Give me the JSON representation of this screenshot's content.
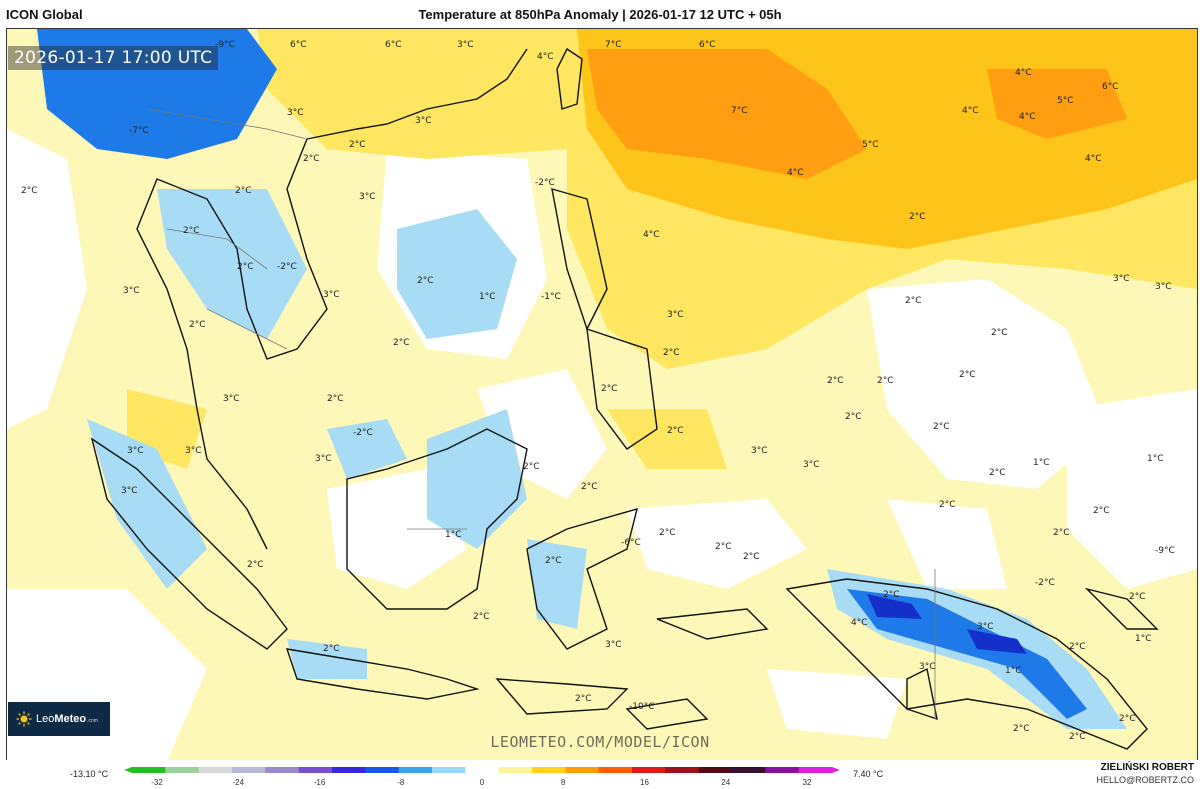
{
  "header": {
    "model_name": "ICON Global",
    "title": "Temperature at 850hPa Anomaly | 2026-01-17 12 UTC + 05h"
  },
  "map": {
    "timestamp": "2026-01-17 17:00 UTC",
    "watermark": "LEOMETEO.COM/MODEL/ICON",
    "labels": [
      {
        "text": "-9°C"
      },
      {
        "text": "6°C"
      },
      {
        "text": "6°C"
      },
      {
        "text": "3°C"
      },
      {
        "text": "7°C"
      },
      {
        "text": "6°C"
      },
      {
        "text": "4°C"
      },
      {
        "text": "4°C"
      },
      {
        "text": "6°C"
      },
      {
        "text": "5°C"
      },
      {
        "text": "-7°C"
      },
      {
        "text": "3°C"
      },
      {
        "text": "3°C"
      },
      {
        "text": "7°C"
      },
      {
        "text": "4°C"
      },
      {
        "text": "4°C"
      },
      {
        "text": "5°C"
      },
      {
        "text": "4°C"
      },
      {
        "text": "2°C"
      },
      {
        "text": "2°C"
      },
      {
        "text": "2°C"
      },
      {
        "text": "2°C"
      },
      {
        "text": "3°C"
      },
      {
        "text": "4°C"
      },
      {
        "text": "4°C"
      },
      {
        "text": "2°C"
      },
      {
        "text": "2°C"
      },
      {
        "text": "2°C"
      },
      {
        "text": "-2°C"
      },
      {
        "text": "-2°C"
      },
      {
        "text": "2°C"
      },
      {
        "text": "1°C"
      },
      {
        "text": "3°C"
      },
      {
        "text": "3°C"
      },
      {
        "text": "-1°C"
      },
      {
        "text": "2°C"
      },
      {
        "text": "3°C"
      },
      {
        "text": "2°C"
      },
      {
        "text": "2°C"
      },
      {
        "text": "2°C"
      },
      {
        "text": "2°C"
      },
      {
        "text": "2°C"
      },
      {
        "text": "2°C"
      },
      {
        "text": "2°C"
      },
      {
        "text": "3°C"
      },
      {
        "text": "3°C"
      },
      {
        "text": "3°C"
      },
      {
        "text": "2°C"
      },
      {
        "text": "2°C"
      },
      {
        "text": "2°C"
      },
      {
        "text": "-2°C"
      },
      {
        "text": "3°C"
      },
      {
        "text": "3°C"
      },
      {
        "text": "2°C"
      },
      {
        "text": "3°C"
      },
      {
        "text": "3°C"
      },
      {
        "text": "2°C"
      },
      {
        "text": "1°C"
      },
      {
        "text": "1°C"
      },
      {
        "text": "3°C"
      },
      {
        "text": "3°C"
      },
      {
        "text": "2°C"
      },
      {
        "text": "2°C"
      },
      {
        "text": "2°C"
      },
      {
        "text": "2°C"
      },
      {
        "text": "2°C"
      },
      {
        "text": "2°C"
      },
      {
        "text": "2°C"
      },
      {
        "text": "2°C"
      },
      {
        "text": "2°C"
      },
      {
        "text": "-6°C"
      },
      {
        "text": "1°C"
      },
      {
        "text": "-9°C"
      },
      {
        "text": "2°C"
      },
      {
        "text": "2°C"
      },
      {
        "text": "2°C"
      },
      {
        "text": "-2°C"
      },
      {
        "text": "2°C"
      },
      {
        "text": "2°C"
      },
      {
        "text": "2°C"
      },
      {
        "text": "3°C"
      },
      {
        "text": "2°C"
      },
      {
        "text": "-10°C"
      },
      {
        "text": "4°C"
      },
      {
        "text": "3°C"
      },
      {
        "text": "2°C"
      },
      {
        "text": "1°C"
      },
      {
        "text": "3°C"
      },
      {
        "text": "1°C"
      },
      {
        "text": "2°C"
      },
      {
        "text": "2°C"
      },
      {
        "text": "2°C"
      }
    ]
  },
  "logo": {
    "text_a": "Leo",
    "text_b": "Meteo",
    "text_c": ".com"
  },
  "legend": {
    "min_value": "-13.10 °C",
    "max_value": "7.40 °C",
    "ticks": [
      "-32",
      "-24",
      "-16",
      "-8",
      "0",
      "8",
      "16",
      "24",
      "32"
    ],
    "colors": [
      "#22c022",
      "#9ad09a",
      "#d8d8d8",
      "#b8b8d8",
      "#9a8acc",
      "#7a4cd0",
      "#3a26e0",
      "#1a58f0",
      "#3aa0f0",
      "#9ad8f8",
      "#ffffff",
      "#fff39a",
      "#ffd21a",
      "#ff9c00",
      "#ff5a00",
      "#e01818",
      "#a0101a",
      "#500c12",
      "#3a1030",
      "#8a10a0",
      "#e020e0"
    ]
  },
  "author": {
    "name": "ZIELIŃSKI ROBERT",
    "email": "HELLO@ROBERTZ.CO"
  }
}
